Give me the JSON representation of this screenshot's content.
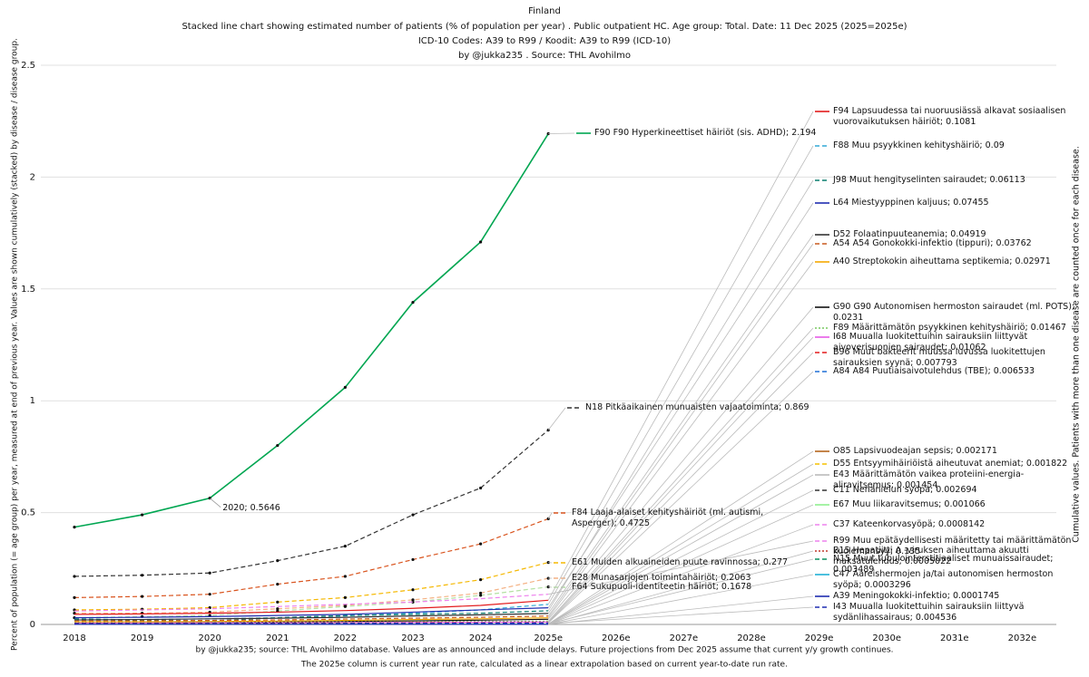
{
  "chart_data": {
    "type": "line",
    "title": "Finland",
    "subtitle": [
      "Stacked line chart showing estimated number of patients  (% of population per year) . Public outpatient HC. Age group: Total. Date: 11 Dec 2025 (2025=2025e)",
      "ICD-10 Codes: A39 to R99 / Koodit: A39 to R99 (ICD-10)",
      "by @jukka235 . Source: THL Avohilmo"
    ],
    "y_label": "Percent of population (= age group) per year, measured at end of previous year. Values are shown cumulatively (stacked) by disease / disease group.",
    "right_label": "Cumulative values. Patients with more than one disease are counted once for each disease.",
    "footer": [
      "by @jukka235; source: THL Avohilmo database. Values are as announced and include delays. Future projections from Dec 2025 assume that current y/y growth continues.",
      "The 2025e column is current year run rate, calculated as a linear extrapolation based on current year-to-date run rate."
    ],
    "categories": [
      "2018",
      "2019",
      "2020",
      "2021",
      "2022",
      "2023",
      "2024",
      "2025e",
      "2026e",
      "2027e",
      "2028e",
      "2029e",
      "2030e",
      "2031e",
      "2032e"
    ],
    "ylim": [
      0,
      2.5
    ],
    "yticks": [
      0,
      0.5,
      1,
      1.5,
      2,
      2.5
    ],
    "grid": true,
    "annotations": [
      {
        "label": "2020; 0.5646",
        "series": 0,
        "index": 2
      }
    ],
    "series": [
      {
        "name": "F90 F90 Hyperkineettiset häiriöt (sis. ADHD)",
        "end_label": "F90 F90 Hyperkineettiset häiriöt (sis. ADHD); 2.194",
        "color": "#00a651",
        "style": "solid",
        "values": [
          0.435,
          0.49,
          0.5646,
          0.8,
          1.06,
          1.44,
          1.71,
          2.194,
          null,
          null,
          null,
          null,
          null,
          null,
          null
        ]
      },
      {
        "name": "N18 Pitkäaikainen munuaisten vajaatoiminta",
        "end_label": "N18 Pitkäaikainen munuaisten vajaatoiminta; 0.869",
        "color": "#333333",
        "style": "dashed",
        "values": [
          0.215,
          0.22,
          0.23,
          0.285,
          0.35,
          0.49,
          0.61,
          0.869,
          null,
          null,
          null,
          null,
          null,
          null,
          null
        ]
      },
      {
        "name": "F84 Laaja-alaiset kehityshäiriöt (ml. autismi, Asperger)",
        "end_label": "F84 Laaja-alaiset kehityshäiriöt (ml. autismi, Asperger); 0.4725",
        "color": "#d9541e",
        "style": "dashed",
        "values": [
          0.12,
          0.125,
          0.135,
          0.18,
          0.215,
          0.29,
          0.36,
          0.4725,
          null,
          null,
          null,
          null,
          null,
          null,
          null
        ]
      },
      {
        "name": "E61 Muiden alkuaineiden puute ravinnossa",
        "end_label": "E61 Muiden alkuaineiden puute ravinnossa; 0.277",
        "color": "#f5b800",
        "style": "dashed",
        "values": [
          0.065,
          0.068,
          0.075,
          0.1,
          0.12,
          0.155,
          0.2,
          0.277,
          null,
          null,
          null,
          null,
          null,
          null,
          null
        ]
      },
      {
        "name": "E28 Munasarjojen toimintahäiriöt",
        "end_label": "E28 Munasarjojen toimintahäiriöt; 0.2063",
        "color": "#f4b183",
        "style": "dashed",
        "values": [
          0.05,
          0.05,
          0.055,
          0.07,
          0.085,
          0.11,
          0.14,
          0.2063,
          null,
          null,
          null,
          null,
          null,
          null,
          null
        ]
      },
      {
        "name": "F64 Sukupuoli-identiteetin häiriöt",
        "end_label": "F64 Sukupuoli-identiteetin häiriöt; 0.1678",
        "color": "#b4e1a3",
        "style": "dashed",
        "values": [
          0.03,
          0.035,
          0.04,
          0.06,
          0.08,
          0.1,
          0.13,
          0.1678,
          null,
          null,
          null,
          null,
          null,
          null,
          null
        ]
      },
      {
        "name": "F94 Lapsuudessa tai nuoruusiässä alkavat sosiaalisen vuorovaikutuksen häiriöt",
        "end_label": "F94 Lapsuudessa tai nuoruusiässä alkavat sosiaalisen vuorovaikutuksen häiriöt; 0.1081",
        "color": "#e31a1c",
        "style": "solid",
        "values": [
          0.045,
          0.047,
          0.05,
          0.055,
          0.062,
          0.072,
          0.085,
          0.1081,
          null,
          null,
          null,
          null,
          null,
          null,
          null
        ]
      },
      {
        "name": "F88 Muu psyykkinen kehityshäiriö",
        "end_label": "F88 Muu psyykkinen kehityshäiriö; 0.09",
        "color": "#31a9d6",
        "style": "dashed",
        "values": [
          0.02,
          0.022,
          0.025,
          0.03,
          0.038,
          0.05,
          0.065,
          0.09,
          null,
          null,
          null,
          null,
          null,
          null,
          null
        ]
      },
      {
        "name": "J98 Muut hengityselinten sairaudet",
        "end_label": "J98 Muut hengityselinten sairaudet; 0.06113",
        "color": "#0a7f6f",
        "style": "dashed",
        "values": [
          0.025,
          0.02,
          0.015,
          0.03,
          0.04,
          0.045,
          0.05,
          0.06113,
          null,
          null,
          null,
          null,
          null,
          null,
          null
        ]
      },
      {
        "name": "L64 Miestyyppinen kaljuus",
        "end_label": "L64 Miestyyppinen kaljuus; 0.07455",
        "color": "#1f2db0",
        "style": "solid",
        "values": [
          0.03,
          0.032,
          0.035,
          0.04,
          0.045,
          0.055,
          0.065,
          0.07455,
          null,
          null,
          null,
          null,
          null,
          null,
          null
        ]
      },
      {
        "name": "D52 Folaatinpuuteanemia",
        "end_label": "D52 Folaatinpuuteanemia; 0.04919",
        "color": "#333333",
        "style": "solid",
        "values": [
          0.02,
          0.022,
          0.025,
          0.028,
          0.032,
          0.038,
          0.043,
          0.04919,
          null,
          null,
          null,
          null,
          null,
          null,
          null
        ]
      },
      {
        "name": "A54 A54 Gonokokki-infektio (tippuri)",
        "end_label": "A54 A54 Gonokokki-infektio (tippuri); 0.03762",
        "color": "#c85a1e",
        "style": "dashed",
        "values": [
          0.015,
          0.016,
          0.018,
          0.02,
          0.024,
          0.028,
          0.032,
          0.03762,
          null,
          null,
          null,
          null,
          null,
          null,
          null
        ]
      },
      {
        "name": "A40 Streptokokin aiheuttama septikemia",
        "end_label": "A40 Streptokokin aiheuttama septikemia; 0.02971",
        "color": "#f5a800",
        "style": "solid",
        "values": [
          0.012,
          0.012,
          0.013,
          0.015,
          0.018,
          0.022,
          0.025,
          0.02971,
          null,
          null,
          null,
          null,
          null,
          null,
          null
        ]
      },
      {
        "name": "G90 G90 Autonomisen hermoston sairaudet (ml. POTS)",
        "end_label": "G90 G90 Autonomisen hermoston sairaudet (ml. POTS); 0.0231",
        "color": "#111111",
        "style": "solid",
        "values": [
          0.005,
          0.006,
          0.008,
          0.01,
          0.013,
          0.016,
          0.019,
          0.0231,
          null,
          null,
          null,
          null,
          null,
          null,
          null
        ]
      },
      {
        "name": "F89 Määrittämätön psyykkinen kehityshäiriö",
        "end_label": "F89 Määrittämätön psyykkinen kehityshäiriö; 0.01467",
        "color": "#77c95f",
        "style": "dotted",
        "values": [
          0.008,
          0.008,
          0.009,
          0.01,
          0.011,
          0.012,
          0.013,
          0.01467,
          null,
          null,
          null,
          null,
          null,
          null,
          null
        ]
      },
      {
        "name": "I68 Muualla luokitettuihin sairauksiin liittyvät aivoverisuonien sairaudet",
        "end_label": "I68 Muualla luokitettuihin sairauksiin liittyvät aivoverisuonien sairaudet; 0.01062",
        "color": "#e65ce6",
        "style": "solid",
        "values": [
          0.006,
          0.006,
          0.007,
          0.007,
          0.008,
          0.009,
          0.01,
          0.01062,
          null,
          null,
          null,
          null,
          null,
          null,
          null
        ]
      },
      {
        "name": "B96 Muut bakteerit muussa luvussa luokitettujen sairauksien syynä",
        "end_label": "B96 Muut bakteerit muussa luvussa luokitettujen sairauksien syynä; 0.007793",
        "color": "#e31a1c",
        "style": "dashed",
        "values": [
          0.005,
          0.005,
          0.005,
          0.006,
          0.006,
          0.007,
          0.007,
          0.007793,
          null,
          null,
          null,
          null,
          null,
          null,
          null
        ]
      },
      {
        "name": "A84 A84 Puutiaisaivotulehdus (TBE)",
        "end_label": "A84 A84 Puutiaisaivotulehdus (TBE); 0.006533",
        "color": "#1f6fd6",
        "style": "dashed",
        "values": [
          0.003,
          0.003,
          0.004,
          0.004,
          0.005,
          0.005,
          0.006,
          0.006533,
          null,
          null,
          null,
          null,
          null,
          null,
          null
        ]
      },
      {
        "name": "O85 Lapsivuodeajan sepsis",
        "end_label": "O85 Lapsivuodeajan sepsis; 0.002171",
        "color": "#b5651d",
        "style": "solid",
        "values": [
          0.002,
          0.002,
          0.002,
          0.002,
          0.002,
          0.002,
          0.002,
          0.002171,
          null,
          null,
          null,
          null,
          null,
          null,
          null
        ]
      },
      {
        "name": "D55 Entsyymihäiriöistä aiheutuvat anemiat",
        "end_label": "D55 Entsyymihäiriöistä aiheutuvat anemiat; 0.001822",
        "color": "#f5c000",
        "style": "dashed",
        "values": [
          0.0015,
          0.0015,
          0.0016,
          0.0016,
          0.0017,
          0.0017,
          0.0018,
          0.001822,
          null,
          null,
          null,
          null,
          null,
          null,
          null
        ]
      },
      {
        "name": "E43 Määrittämätön vaikea proteiini-energia-aliravitsemus",
        "end_label": "E43 Määrittämätön vaikea proteiini-energia-aliravitsemus; 0.001454",
        "color": "#bbbbbb",
        "style": "solid",
        "values": [
          0.0012,
          0.0012,
          0.0013,
          0.0013,
          0.0014,
          0.0014,
          0.0014,
          0.001454,
          null,
          null,
          null,
          null,
          null,
          null,
          null
        ]
      },
      {
        "name": "C11 Nenänielun syöpä",
        "end_label": "C11 Nenänielun syöpä; 0.002694",
        "color": "#333333",
        "style": "dashed",
        "values": [
          0.002,
          0.002,
          0.0021,
          0.0022,
          0.0023,
          0.0024,
          0.0025,
          0.002694,
          null,
          null,
          null,
          null,
          null,
          null,
          null
        ]
      },
      {
        "name": "E67 Muu liikaravitsemus",
        "end_label": "E67 Muu liikaravitsemus; 0.001066",
        "color": "#90ee90",
        "style": "solid",
        "values": [
          0.0009,
          0.0009,
          0.0009,
          0.001,
          0.001,
          0.001,
          0.001,
          0.001066,
          null,
          null,
          null,
          null,
          null,
          null,
          null
        ]
      },
      {
        "name": "C37 Kateenkorvasyöpä",
        "end_label": "C37 Kateenkorvasyöpä; 0.0008142",
        "color": "#ee82ee",
        "style": "dashed",
        "values": [
          0.0007,
          0.0007,
          0.0007,
          0.0008,
          0.0008,
          0.0008,
          0.0008,
          0.0008142,
          null,
          null,
          null,
          null,
          null,
          null,
          null
        ]
      },
      {
        "name": "R99 Muu epätäydellisesti määritetty tai määrittämätön kuolemansyy",
        "end_label": "R99 Muu epätäydellisesti määritetty tai määrittämätön kuolemansyy; 0.135",
        "color": "#ee82ee",
        "style": "dashed",
        "values": [
          0.06,
          0.065,
          0.07,
          0.08,
          0.09,
          0.1,
          0.115,
          0.135,
          null,
          null,
          null,
          null,
          null,
          null,
          null
        ]
      },
      {
        "name": "B15 Hepatiitti A -viruksen aiheuttama akuutti maksatulehdus",
        "end_label": "B15 Hepatiitti A -viruksen aiheuttama akuutti maksatulehdus; 0.0005022",
        "color": "#c0392b",
        "style": "dotted",
        "values": [
          0.0004,
          0.0004,
          0.0004,
          0.0005,
          0.0005,
          0.0005,
          0.0005,
          0.0005022,
          null,
          null,
          null,
          null,
          null,
          null,
          null
        ]
      },
      {
        "name": "N15 Muut tubulointerstitiaaliset munuaissairaudet",
        "end_label": "N15 Muut tubulointerstitiaaliset munuaissairaudet; 0.003489",
        "color": "#0a8f5f",
        "style": "dashed",
        "values": [
          0.003,
          0.003,
          0.003,
          0.0031,
          0.0032,
          0.0033,
          0.0034,
          0.003489,
          null,
          null,
          null,
          null,
          null,
          null,
          null
        ]
      },
      {
        "name": "C47 Ääreishermojen ja/tai autonomisen hermoston syöpä",
        "end_label": "C47 Ääreishermojen ja/tai autonomisen hermoston syöpä; 0.0003296",
        "color": "#1fb0d6",
        "style": "solid",
        "values": [
          0.0003,
          0.0003,
          0.0003,
          0.0003,
          0.0003,
          0.0003,
          0.0003,
          0.0003296,
          null,
          null,
          null,
          null,
          null,
          null,
          null
        ]
      },
      {
        "name": "A39 Meningokokki-infektio",
        "end_label": "A39 Meningokokki-infektio; 0.0001745",
        "color": "#1f2db0",
        "style": "solid",
        "values": [
          0.0002,
          0.0002,
          0.0002,
          0.0002,
          0.0002,
          0.0002,
          0.0002,
          0.0001745,
          null,
          null,
          null,
          null,
          null,
          null,
          null
        ]
      },
      {
        "name": "I43 Muualla luokitettuihin sairauksiin liittyvä sydänlihassairaus",
        "end_label": "I43 Muualla luokitettuihin sairauksiin liittyvä sydänlihassairaus; 0.004536",
        "color": "#1f2db0",
        "style": "dashed",
        "values": [
          0.004,
          0.004,
          0.004,
          0.0041,
          0.0042,
          0.0043,
          0.0044,
          0.004536,
          null,
          null,
          null,
          null,
          null,
          null,
          null
        ]
      }
    ]
  }
}
